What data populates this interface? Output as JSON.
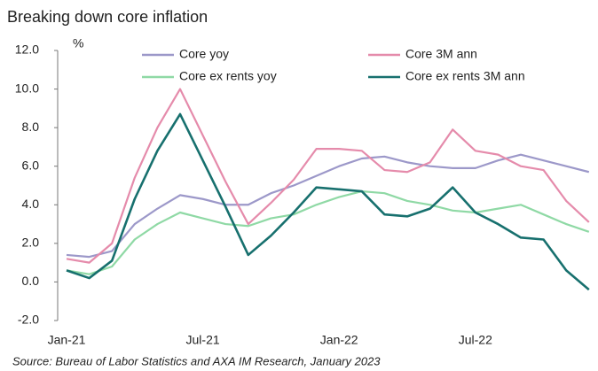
{
  "chart_data": {
    "type": "line",
    "title": "Breaking down core inflation",
    "y_label": "%",
    "source": "Source: Bureau of Labor Statistics and AXA IM Research, January 2023",
    "categories": [
      "Jan-21",
      null,
      null,
      null,
      null,
      null,
      "Jul-21",
      null,
      null,
      null,
      null,
      null,
      "Jan-22",
      null,
      null,
      null,
      null,
      null,
      "Jul-22",
      null,
      null,
      null,
      null,
      null
    ],
    "ylim": [
      -2,
      12
    ],
    "yticks": [
      {
        "value": 12,
        "label": "12.0"
      },
      {
        "value": 10,
        "label": "10.0"
      },
      {
        "value": 8,
        "label": "8.0"
      },
      {
        "value": 6,
        "label": "6.0"
      },
      {
        "value": 4,
        "label": "4.0"
      },
      {
        "value": 2,
        "label": "2.0"
      },
      {
        "value": 0,
        "label": "0.0"
      },
      {
        "value": -2,
        "label": "-2.0"
      }
    ],
    "series": [
      {
        "name": "Core yoy",
        "color": "#9c98c9",
        "values": [
          1.4,
          1.3,
          1.6,
          3.0,
          3.8,
          4.5,
          4.3,
          4.0,
          4.0,
          4.6,
          5.0,
          5.5,
          6.0,
          6.4,
          6.5,
          6.2,
          6.0,
          5.9,
          5.9,
          6.3,
          6.6,
          6.3,
          6.0,
          5.7
        ]
      },
      {
        "name": "Core 3M ann",
        "color": "#e58bab",
        "values": [
          1.2,
          1.0,
          2.0,
          5.4,
          8.0,
          10.0,
          7.6,
          5.2,
          3.0,
          4.1,
          5.3,
          6.9,
          6.9,
          6.8,
          5.8,
          5.7,
          6.2,
          7.9,
          6.8,
          6.6,
          6.0,
          5.8,
          4.2,
          3.1
        ]
      },
      {
        "name": "Core ex rents yoy",
        "color": "#8fd9a5",
        "values": [
          0.6,
          0.4,
          0.8,
          2.2,
          3.0,
          3.6,
          3.3,
          3.0,
          2.9,
          3.3,
          3.5,
          4.0,
          4.4,
          4.7,
          4.6,
          4.2,
          4.0,
          3.7,
          3.6,
          3.8,
          4.0,
          3.5,
          3.0,
          2.6
        ]
      },
      {
        "name": "Core ex rents 3M ann",
        "color": "#17706e",
        "values": [
          0.6,
          0.2,
          1.1,
          4.3,
          6.8,
          8.7,
          6.3,
          3.9,
          1.4,
          2.4,
          3.6,
          4.9,
          4.8,
          4.7,
          3.5,
          3.4,
          3.8,
          4.9,
          3.6,
          3.0,
          2.3,
          2.2,
          0.6,
          -0.4
        ]
      }
    ]
  }
}
